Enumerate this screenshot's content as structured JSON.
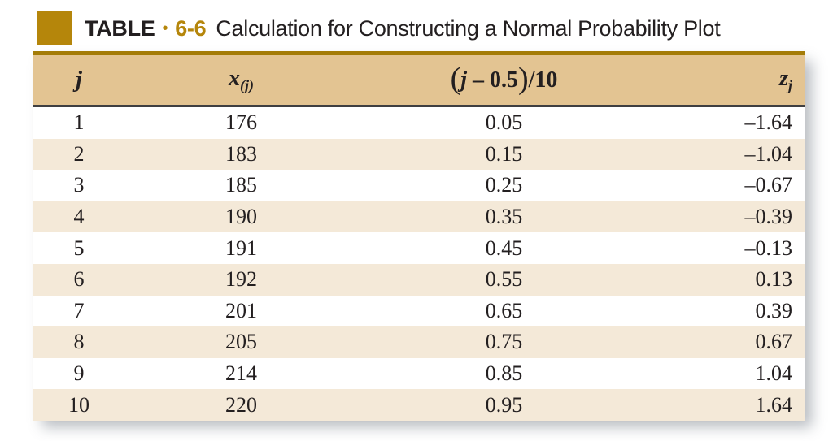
{
  "title": {
    "label": "TABLE",
    "bullet": "•",
    "number": "6-6",
    "caption": "Calculation for Constructing a Normal Probability Plot"
  },
  "colors": {
    "accent": "#b5860b",
    "header-bg": "#e3c492",
    "stripe": "#f4e9d8",
    "rule-gold": "#a47c08",
    "rule-dark": "#3f3f41",
    "ink": "#231f20",
    "shadow": "rgba(100,108,120,0.45)"
  },
  "table": {
    "header": {
      "j": "j",
      "x_base": "x",
      "x_sub": "(j)",
      "p_open": "(",
      "p_var": "j",
      "p_rest": " – 0.5",
      "p_close": ")",
      "p_div": "/10",
      "z_base": "z",
      "z_sub": "j"
    },
    "rows": [
      {
        "j": "1",
        "x": "176",
        "p": "0.05",
        "z": "–1.64"
      },
      {
        "j": "2",
        "x": "183",
        "p": "0.15",
        "z": "–1.04"
      },
      {
        "j": "3",
        "x": "185",
        "p": "0.25",
        "z": "–0.67"
      },
      {
        "j": "4",
        "x": "190",
        "p": "0.35",
        "z": "–0.39"
      },
      {
        "j": "5",
        "x": "191",
        "p": "0.45",
        "z": "–0.13"
      },
      {
        "j": "6",
        "x": "192",
        "p": "0.55",
        "z": "0.13"
      },
      {
        "j": "7",
        "x": "201",
        "p": "0.65",
        "z": "0.39"
      },
      {
        "j": "8",
        "x": "205",
        "p": "0.75",
        "z": "0.67"
      },
      {
        "j": "9",
        "x": "214",
        "p": "0.85",
        "z": "1.04"
      },
      {
        "j": "10",
        "x": "220",
        "p": "0.95",
        "z": "1.64"
      }
    ]
  }
}
